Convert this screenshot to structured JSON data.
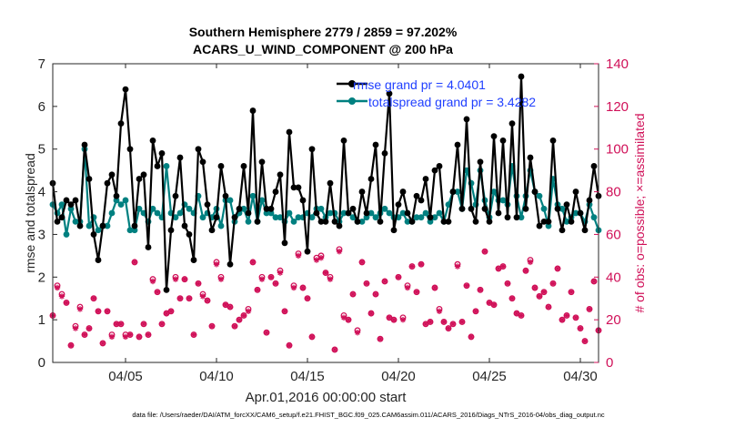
{
  "chart_data": {
    "type": "line",
    "title_line1": "Southern Hemisphere 2779 / 2859 = 97.202%",
    "title_line2": "ACARS_U_WIND_COMPONENT @ 200 hPa",
    "xlabel": "Apr.01,2016 00:00:00 start",
    "ylabel_left": "rmse and totalspread",
    "ylabel_right": "# of obs: o=possible; ×=assimilated",
    "ylim_left": [
      0,
      7
    ],
    "ylim_right": [
      0,
      140
    ],
    "xlim": [
      1,
      31
    ],
    "x_ticks": [
      5,
      10,
      15,
      20,
      25,
      30
    ],
    "x_tick_labels": [
      "04/05",
      "04/10",
      "04/15",
      "04/20",
      "04/25",
      "04/30"
    ],
    "y_ticks_left": [
      0,
      1,
      2,
      3,
      4,
      5,
      6,
      7
    ],
    "y_ticks_right": [
      0,
      20,
      40,
      60,
      80,
      100,
      120,
      140
    ],
    "legend": [
      "rmse grand pr = 4.0401",
      "totalspread grand pr = 3.4282"
    ],
    "footer": "data file: /Users/raeder/DAI/ATM_forcXX/CAM6_setup/f.e21.FHIST_BGC.f09_025.CAM6assim.011/ACARS_2016/Diags_NTrS_2016-04/obs_diag_output.nc",
    "colors": {
      "rmse": "#000000",
      "spread": "#008080",
      "obs": "#d01058",
      "legend_text": "#1f3fff"
    },
    "x": [
      1.0,
      1.25,
      1.5,
      1.75,
      2.0,
      2.25,
      2.5,
      2.75,
      3.0,
      3.25,
      3.5,
      3.75,
      4.0,
      4.25,
      4.5,
      4.75,
      5.0,
      5.25,
      5.5,
      5.75,
      6.0,
      6.25,
      6.5,
      6.75,
      7.0,
      7.25,
      7.5,
      7.75,
      8.0,
      8.25,
      8.5,
      8.75,
      9.0,
      9.25,
      9.5,
      9.75,
      10.0,
      10.25,
      10.5,
      10.75,
      11.0,
      11.25,
      11.5,
      11.75,
      12.0,
      12.25,
      12.5,
      12.75,
      13.0,
      13.25,
      13.5,
      13.75,
      14.0,
      14.25,
      14.5,
      14.75,
      15.0,
      15.25,
      15.5,
      15.75,
      16.0,
      16.25,
      16.5,
      16.75,
      17.0,
      17.25,
      17.5,
      17.75,
      18.0,
      18.25,
      18.5,
      18.75,
      19.0,
      19.25,
      19.5,
      19.75,
      20.0,
      20.25,
      20.5,
      20.75,
      21.0,
      21.25,
      21.5,
      21.75,
      22.0,
      22.25,
      22.5,
      22.75,
      23.0,
      23.25,
      23.5,
      23.75,
      24.0,
      24.25,
      24.5,
      24.75,
      25.0,
      25.25,
      25.5,
      25.75,
      26.0,
      26.25,
      26.5,
      26.75,
      27.0,
      27.25,
      27.5,
      27.75,
      28.0,
      28.25,
      28.5,
      28.75,
      29.0,
      29.25,
      29.5,
      29.75,
      30.0,
      30.25,
      30.5,
      30.75,
      31.0
    ],
    "series": [
      {
        "name": "rmse",
        "values": [
          4.2,
          3.3,
          3.4,
          3.8,
          3.7,
          3.8,
          3.2,
          5.1,
          4.3,
          3.0,
          2.4,
          3.2,
          4.2,
          4.4,
          3.9,
          5.6,
          6.4,
          5.0,
          3.2,
          4.3,
          4.4,
          2.7,
          5.2,
          4.6,
          4.9,
          1.7,
          3.1,
          3.9,
          4.8,
          3.2,
          3.0,
          2.4,
          5.0,
          4.7,
          3.7,
          3.1,
          3.4,
          4.6,
          3.9,
          2.3,
          3.4,
          3.6,
          4.6,
          3.5,
          5.9,
          3.3,
          4.7,
          3.6,
          3.6,
          4.0,
          4.4,
          2.8,
          5.4,
          4.1,
          4.1,
          3.8,
          2.6,
          5.0,
          3.5,
          3.3,
          3.3,
          4.2,
          3.3,
          3.2,
          5.2,
          3.5,
          3.6,
          3.3,
          4.0,
          3.5,
          4.3,
          5.1,
          3.3,
          4.9,
          6.3,
          3.1,
          3.7,
          4.0,
          3.5,
          3.3,
          3.9,
          3.8,
          4.3,
          3.4,
          4.5,
          4.6,
          3.3,
          3.3,
          4.0,
          5.1,
          3.6,
          5.7,
          3.6,
          3.3,
          4.7,
          3.6,
          3.3,
          5.3,
          3.5,
          5.2,
          3.4,
          5.6,
          3.4,
          6.7,
          3.6,
          4.8,
          4.0,
          3.2,
          3.3,
          3.3,
          5.2,
          3.6,
          3.1,
          3.7,
          3.3,
          4.0,
          3.5,
          3.1,
          3.8,
          4.6,
          3.9
        ]
      },
      {
        "name": "totalspread",
        "values": [
          3.7,
          3.5,
          3.7,
          3.0,
          3.6,
          3.3,
          3.3,
          5.0,
          3.2,
          3.4,
          3.1,
          3.2,
          3.2,
          3.5,
          3.8,
          3.7,
          3.8,
          3.1,
          3.1,
          3.6,
          3.5,
          3.3,
          3.6,
          3.5,
          3.4,
          4.6,
          3.5,
          3.4,
          3.5,
          3.7,
          3.6,
          3.5,
          3.9,
          3.4,
          3.5,
          3.4,
          3.6,
          3.2,
          3.8,
          3.8,
          3.3,
          3.5,
          3.6,
          3.3,
          3.9,
          3.3,
          3.8,
          3.5,
          3.5,
          3.4,
          3.4,
          3.3,
          3.5,
          3.3,
          3.4,
          3.4,
          3.5,
          3.4,
          3.6,
          3.6,
          3.4,
          3.5,
          3.5,
          3.3,
          3.5,
          3.5,
          3.4,
          3.3,
          3.3,
          3.4,
          3.5,
          3.4,
          3.5,
          3.6,
          3.5,
          3.4,
          3.4,
          3.5,
          3.3,
          3.3,
          3.4,
          3.4,
          3.5,
          3.3,
          3.4,
          3.5,
          3.3,
          3.7,
          4.0,
          4.0,
          3.6,
          4.5,
          4.2,
          3.7,
          4.5,
          3.8,
          3.4,
          4.0,
          3.8,
          3.8,
          3.7,
          4.6,
          3.9,
          3.4,
          3.9,
          4.5,
          4.0,
          3.9,
          3.6,
          3.2,
          4.3,
          3.7,
          3.6,
          3.3,
          3.4,
          3.5,
          3.5,
          3.3,
          3.7,
          3.4,
          3.1
        ]
      }
    ],
    "obs_possible": [
      22,
      36,
      32,
      28,
      8,
      17,
      26,
      13,
      16,
      30,
      24,
      9,
      24,
      13,
      18,
      18,
      13,
      13,
      47,
      12,
      18,
      13,
      39,
      33,
      18,
      23,
      24,
      40,
      30,
      39,
      30,
      13,
      37,
      32,
      29,
      17,
      47,
      40,
      27,
      26,
      17,
      20,
      22,
      25,
      47,
      34,
      40,
      14,
      40,
      37,
      43,
      24,
      8,
      36,
      51,
      35,
      30,
      12,
      49,
      50,
      42,
      40,
      6,
      53,
      22,
      20,
      32,
      15,
      47,
      37,
      23,
      32,
      11,
      38,
      21,
      20,
      40,
      21,
      36,
      45,
      33,
      46,
      18,
      19,
      35,
      25,
      19,
      16,
      18,
      46,
      19,
      36,
      12,
      24,
      34,
      52,
      28,
      27,
      44,
      45,
      37,
      30,
      23,
      22,
      43,
      48,
      35,
      31,
      33,
      26,
      37,
      44,
      20,
      22,
      33,
      21,
      16,
      10,
      25,
      38,
      15
    ],
    "obs_assimilated": [
      22,
      35,
      31,
      28,
      8,
      16,
      25,
      13,
      16,
      30,
      24,
      9,
      24,
      12,
      18,
      18,
      12,
      13,
      47,
      12,
      18,
      13,
      38,
      33,
      18,
      23,
      24,
      39,
      30,
      39,
      30,
      13,
      37,
      31,
      29,
      17,
      46,
      39,
      27,
      26,
      17,
      20,
      22,
      24,
      47,
      34,
      39,
      14,
      40,
      37,
      42,
      24,
      8,
      35,
      50,
      35,
      30,
      12,
      48,
      49,
      42,
      39,
      6,
      52,
      21,
      20,
      32,
      14,
      47,
      37,
      23,
      32,
      11,
      38,
      21,
      20,
      40,
      20,
      35,
      45,
      33,
      46,
      18,
      19,
      35,
      24,
      19,
      16,
      18,
      45,
      19,
      36,
      12,
      24,
      34,
      52,
      28,
      27,
      44,
      45,
      37,
      30,
      23,
      22,
      43,
      47,
      35,
      31,
      33,
      26,
      37,
      44,
      20,
      22,
      33,
      21,
      16,
      10,
      25,
      38,
      15
    ]
  }
}
